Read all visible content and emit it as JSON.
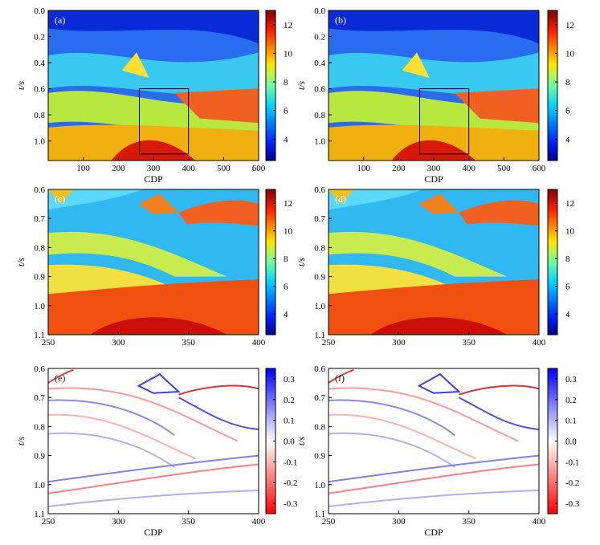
{
  "chart_data": [
    {
      "type": "heatmap",
      "panel_label": "(a)",
      "xlabel": "CDP",
      "ylabel": "t/s",
      "xlim": [
        0,
        600
      ],
      "ylim": [
        0.0,
        1.15
      ],
      "y_inverted": true,
      "xticks": [
        100,
        200,
        300,
        400,
        500,
        600
      ],
      "yticks": [
        0.0,
        0.2,
        0.4,
        0.6,
        0.8,
        1.0
      ],
      "colorbar": {
        "colormap": "jet",
        "range": [
          2.5,
          13
        ],
        "ticks": [
          4,
          6,
          8,
          10,
          12
        ]
      },
      "zoom_box": {
        "x": [
          260,
          400
        ],
        "y": [
          0.6,
          1.1
        ]
      }
    },
    {
      "type": "heatmap",
      "panel_label": "(b)",
      "xlabel": "CDP",
      "ylabel": "t/s",
      "xlim": [
        0,
        600
      ],
      "ylim": [
        0.0,
        1.15
      ],
      "y_inverted": true,
      "xticks": [
        100,
        200,
        300,
        400,
        500,
        600
      ],
      "yticks": [
        0.0,
        0.2,
        0.4,
        0.6,
        0.8,
        1.0
      ],
      "colorbar": {
        "colormap": "jet",
        "range": [
          2.5,
          13
        ],
        "ticks": [
          4,
          6,
          8,
          10,
          12
        ]
      },
      "zoom_box": {
        "x": [
          260,
          400
        ],
        "y": [
          0.6,
          1.1
        ]
      }
    },
    {
      "type": "heatmap",
      "panel_label": "(c)",
      "xlabel": "",
      "ylabel": "t/s",
      "xlim": [
        250,
        400
      ],
      "ylim": [
        0.6,
        1.1
      ],
      "y_inverted": true,
      "xticks": [
        250,
        300,
        350,
        400
      ],
      "yticks": [
        0.6,
        0.7,
        0.8,
        0.9,
        1.0,
        1.1
      ],
      "colorbar": {
        "colormap": "jet",
        "range": [
          2.5,
          13
        ],
        "ticks": [
          4,
          6,
          8,
          10,
          12
        ]
      }
    },
    {
      "type": "heatmap",
      "panel_label": "(d)",
      "xlabel": "",
      "ylabel": "t/s",
      "xlim": [
        250,
        400
      ],
      "ylim": [
        0.6,
        1.1
      ],
      "y_inverted": true,
      "xticks": [
        250,
        300,
        350,
        400
      ],
      "yticks": [
        0.6,
        0.7,
        0.8,
        0.9,
        1.0,
        1.1
      ],
      "colorbar": {
        "colormap": "jet",
        "range": [
          2.5,
          13
        ],
        "ticks": [
          4,
          6,
          8,
          10,
          12
        ]
      }
    },
    {
      "type": "heatmap",
      "panel_label": "(e)",
      "xlabel": "CDP",
      "ylabel": "t/s",
      "xlim": [
        250,
        400
      ],
      "ylim": [
        0.6,
        1.1
      ],
      "y_inverted": true,
      "xticks": [
        250,
        300,
        350,
        400
      ],
      "yticks": [
        0.6,
        0.7,
        0.8,
        0.9,
        1.0,
        1.1
      ],
      "colorbar": {
        "colormap": "blue-white-red",
        "range": [
          -0.35,
          0.35
        ],
        "ticks": [
          0.3,
          0.2,
          0.1,
          0.0,
          -0.1,
          -0.2,
          -0.3
        ]
      }
    },
    {
      "type": "heatmap",
      "panel_label": "(f)",
      "xlabel": "CDP",
      "ylabel": "t/s",
      "xlim": [
        250,
        400
      ],
      "ylim": [
        0.6,
        1.1
      ],
      "y_inverted": true,
      "xticks": [
        250,
        300,
        350,
        400
      ],
      "yticks": [
        0.6,
        0.7,
        0.8,
        0.9,
        1.0,
        1.1
      ],
      "colorbar": {
        "colormap": "blue-white-red",
        "range": [
          -0.35,
          0.35
        ],
        "ticks": [
          0.3,
          0.2,
          0.1,
          0.0,
          -0.1,
          -0.2,
          -0.3
        ]
      }
    }
  ]
}
